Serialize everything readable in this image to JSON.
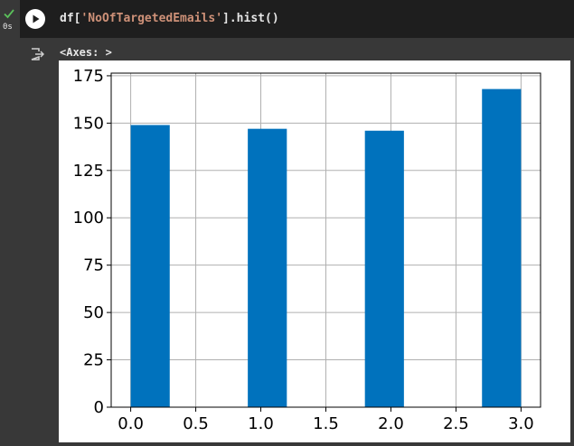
{
  "cell": {
    "status_time": "0s",
    "code_prefix": "df[",
    "code_string": "'NoOfTargetedEmails'",
    "code_suffix": "].hist()",
    "output_text": "<Axes: >"
  },
  "icons": {
    "status": "check-icon",
    "run": "play-icon",
    "output": "output-redirect-icon"
  },
  "colors": {
    "bar": "#0072bd",
    "check": "#5ac05a"
  },
  "chart_data": {
    "type": "bar",
    "bins": [
      {
        "x0": 0.0,
        "x1": 0.3,
        "count": 149
      },
      {
        "x0": 0.9,
        "x1": 1.2,
        "count": 147
      },
      {
        "x0": 1.8,
        "x1": 2.1,
        "count": 146
      },
      {
        "x0": 2.7,
        "x1": 3.0,
        "count": 168
      }
    ],
    "xlim": [
      -0.15,
      3.15
    ],
    "ylim": [
      0,
      176.4
    ],
    "x_ticks": [
      0.0,
      0.5,
      1.0,
      1.5,
      2.0,
      2.5,
      3.0
    ],
    "x_tick_labels": [
      "0.0",
      "0.5",
      "1.0",
      "1.5",
      "2.0",
      "2.5",
      "3.0"
    ],
    "y_ticks": [
      0,
      25,
      50,
      75,
      100,
      125,
      150,
      175
    ],
    "y_tick_labels": [
      "0",
      "25",
      "50",
      "75",
      "100",
      "125",
      "150",
      "175"
    ],
    "grid": true,
    "title": "",
    "xlabel": "",
    "ylabel": ""
  }
}
